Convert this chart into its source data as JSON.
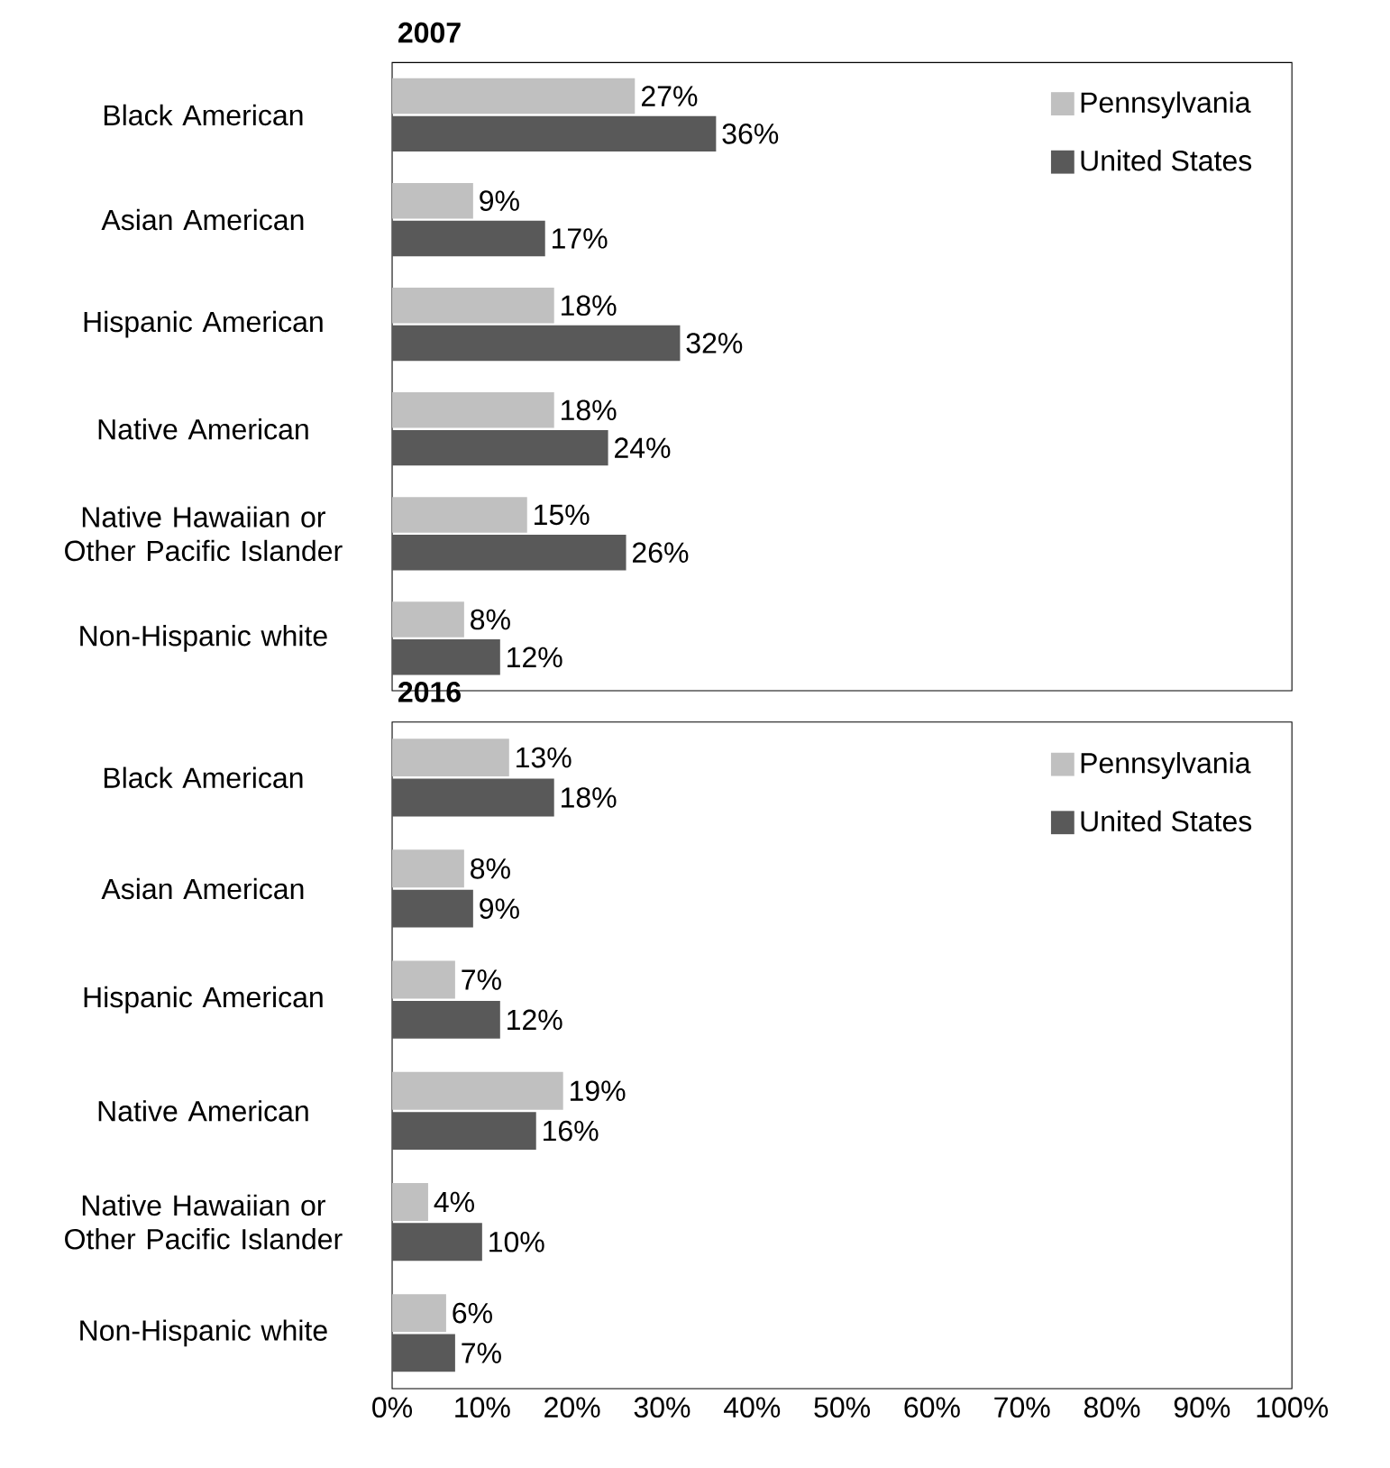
{
  "chart_data": [
    {
      "type": "bar",
      "orientation": "horizontal",
      "title": "2007",
      "categories": [
        "Black American",
        "Asian American",
        "Hispanic American",
        "Native American",
        "Native Hawaiian or Other Pacific Islander",
        "Non-Hispanic white"
      ],
      "series": [
        {
          "name": "Pennsylvania",
          "color": "#c0c0c0",
          "values": [
            27,
            9,
            18,
            18,
            15,
            8
          ],
          "value_labels": [
            "27%",
            "9%",
            "18%",
            "18%",
            "15%",
            "8%"
          ]
        },
        {
          "name": "United States",
          "color": "#595959",
          "values": [
            36,
            17,
            32,
            24,
            26,
            12
          ],
          "value_labels": [
            "36%",
            "17%",
            "32%",
            "24%",
            "26%",
            "12%"
          ]
        }
      ],
      "xlim": [
        0,
        100
      ],
      "tick_labels": "y",
      "legend": "top right",
      "grid": false
    },
    {
      "type": "bar",
      "orientation": "horizontal",
      "title": "2016",
      "categories": [
        "Black American",
        "Asian American",
        "Hispanic American",
        "Native American",
        "Native Hawaiian or Other Pacific Islander",
        "Non-Hispanic white"
      ],
      "series": [
        {
          "name": "Pennsylvania",
          "color": "#c0c0c0",
          "values": [
            13,
            8,
            7,
            19,
            4,
            6
          ],
          "value_labels": [
            "13%",
            "8%",
            "7%",
            "19%",
            "4%",
            "6%"
          ]
        },
        {
          "name": "United States",
          "color": "#595959",
          "values": [
            18,
            9,
            12,
            16,
            10,
            7
          ],
          "value_labels": [
            "18%",
            "9%",
            "12%",
            "16%",
            "10%",
            "7%"
          ]
        }
      ],
      "xlim": [
        0,
        100
      ],
      "xticks": [
        {
          "value": 0,
          "label": "0%"
        },
        {
          "value": 10,
          "label": "10%"
        },
        {
          "value": 20,
          "label": "20%"
        },
        {
          "value": 30,
          "label": "30%"
        },
        {
          "value": 40,
          "label": "40%"
        },
        {
          "value": 50,
          "label": "50%"
        },
        {
          "value": 60,
          "label": "60%"
        },
        {
          "value": 70,
          "label": "70%"
        },
        {
          "value": 80,
          "label": "80%"
        },
        {
          "value": 90,
          "label": "90%"
        },
        {
          "value": 100,
          "label": "100%"
        }
      ],
      "legend": "top right",
      "grid": false
    }
  ]
}
